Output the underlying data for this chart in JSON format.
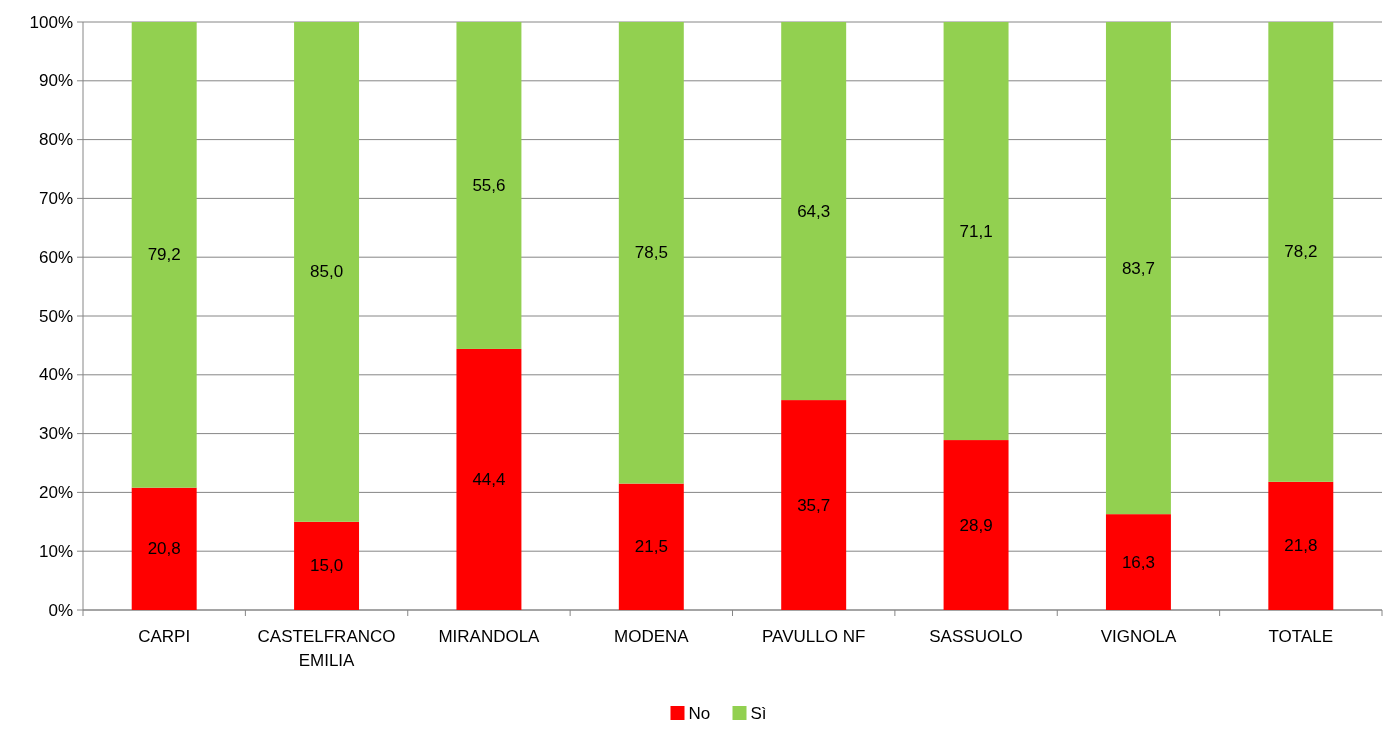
{
  "chart_data": {
    "type": "bar",
    "stacked": true,
    "categories": [
      "CARPI",
      "CASTELFRANCO EMILIA",
      "MIRANDOLA",
      "MODENA",
      "PAVULLO NF",
      "SASSUOLO",
      "VIGNOLA",
      "TOTALE"
    ],
    "series": [
      {
        "name": "No",
        "color": "#ff0000",
        "values": [
          20.8,
          15.0,
          44.4,
          21.5,
          35.7,
          28.9,
          16.3,
          21.8
        ],
        "value_labels": [
          "20,8",
          "15,0",
          "44,4",
          "21,5",
          "35,7",
          "28,9",
          "16,3",
          "21,8"
        ]
      },
      {
        "name": "Sì",
        "color": "#92d050",
        "values": [
          79.2,
          85.0,
          55.6,
          78.5,
          64.3,
          71.1,
          83.7,
          78.2
        ],
        "value_labels": [
          "79,2",
          "85,0",
          "55,6",
          "78,5",
          "64,3",
          "71,1",
          "83,7",
          "78,2"
        ]
      }
    ],
    "ylim": [
      0,
      100
    ],
    "yticks": [
      {
        "value": 0,
        "label": "0%"
      },
      {
        "value": 10,
        "label": "10%"
      },
      {
        "value": 20,
        "label": "20%"
      },
      {
        "value": 30,
        "label": "30%"
      },
      {
        "value": 40,
        "label": "40%"
      },
      {
        "value": 50,
        "label": "50%"
      },
      {
        "value": 60,
        "label": "60%"
      },
      {
        "value": 70,
        "label": "70%"
      },
      {
        "value": 80,
        "label": "80%"
      },
      {
        "value": 90,
        "label": "90%"
      },
      {
        "value": 100,
        "label": "100%"
      }
    ],
    "grid": "y",
    "legend": "bottom"
  }
}
